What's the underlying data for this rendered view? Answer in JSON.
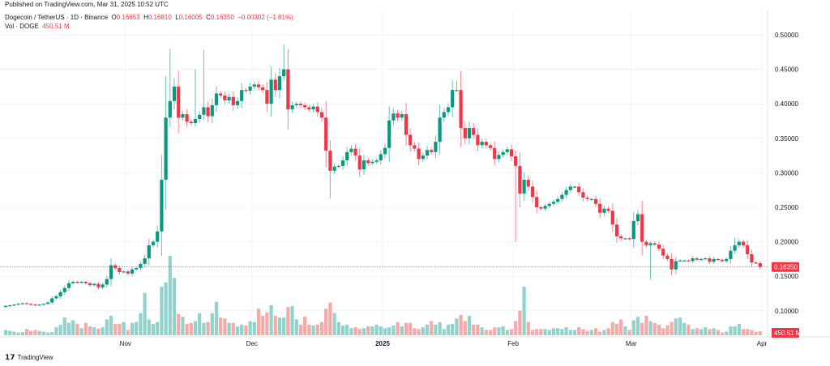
{
  "published": "Published on TradingView.com, Mar 31, 2025 10:52 UTC",
  "legend": {
    "symbol": "Dogecoin / TetherUS · 1D · Binance",
    "o_label": "O",
    "o": "0.16653",
    "h_label": "H",
    "h": "0.16810",
    "l_label": "L",
    "l": "0.16005",
    "c_label": "C",
    "c": "0.16350",
    "change": "−0.00302 (−1.81%)",
    "vol_label": "Vol · DOGE",
    "vol": "450.51 M"
  },
  "logo_text": "TradingView",
  "colors": {
    "up": "#089981",
    "down": "#f23645",
    "vol_up": "#92d2cc",
    "vol_down": "#f7a9a7",
    "grid": "#f0f3fa"
  },
  "chart_data": {
    "type": "candlestick",
    "title": "Dogecoin / TetherUS · 1D · Binance",
    "start_date": "2024-10-03",
    "end_date": "2025-03-31",
    "ylim": [
      0.07,
      0.52
    ],
    "y_ticks": [
      "0.50000",
      "0.45000",
      "0.40000",
      "0.35000",
      "0.30000",
      "0.25000",
      "0.20000",
      "0.15000",
      "0.10000"
    ],
    "y_tick_values": [
      0.5,
      0.45,
      0.4,
      0.35,
      0.3,
      0.25,
      0.2,
      0.15,
      0.1
    ],
    "x_ticks": [
      {
        "label": "Nov",
        "day": 29
      },
      {
        "label": "Dec",
        "day": 59
      },
      {
        "label": "2025",
        "day": 90,
        "bold": true
      },
      {
        "label": "Feb",
        "day": 121
      },
      {
        "label": "Mar",
        "day": 149
      },
      {
        "label": "Apr",
        "day": 180
      }
    ],
    "last_price": 0.1635,
    "last_price_label": "0.16350",
    "last_volume_label": "450.51 M",
    "first_open": 0.106,
    "close": [
      0.107,
      0.108,
      0.109,
      0.11,
      0.111,
      0.11,
      0.109,
      0.108,
      0.109,
      0.11,
      0.112,
      0.118,
      0.121,
      0.127,
      0.133,
      0.14,
      0.142,
      0.141,
      0.142,
      0.14,
      0.137,
      0.139,
      0.134,
      0.138,
      0.146,
      0.166,
      0.162,
      0.156,
      0.157,
      0.154,
      0.16,
      0.162,
      0.168,
      0.176,
      0.195,
      0.2,
      0.215,
      0.29,
      0.38,
      0.404,
      0.425,
      0.38,
      0.385,
      0.374,
      0.372,
      0.378,
      0.384,
      0.395,
      0.382,
      0.398,
      0.415,
      0.412,
      0.405,
      0.41,
      0.398,
      0.404,
      0.42,
      0.419,
      0.425,
      0.428,
      0.424,
      0.42,
      0.4,
      0.435,
      0.42,
      0.44,
      0.45,
      0.392,
      0.398,
      0.4,
      0.398,
      0.395,
      0.392,
      0.396,
      0.388,
      0.38,
      0.332,
      0.303,
      0.309,
      0.31,
      0.318,
      0.33,
      0.335,
      0.325,
      0.305,
      0.318,
      0.314,
      0.316,
      0.318,
      0.327,
      0.336,
      0.376,
      0.386,
      0.38,
      0.385,
      0.355,
      0.34,
      0.335,
      0.32,
      0.325,
      0.333,
      0.33,
      0.345,
      0.38,
      0.388,
      0.395,
      0.42,
      0.42,
      0.365,
      0.35,
      0.365,
      0.355,
      0.34,
      0.345,
      0.34,
      0.336,
      0.32,
      0.326,
      0.33,
      0.334,
      0.324,
      0.31,
      0.27,
      0.29,
      0.28,
      0.265,
      0.25,
      0.248,
      0.252,
      0.255,
      0.258,
      0.262,
      0.268,
      0.275,
      0.28,
      0.28,
      0.272,
      0.264,
      0.262,
      0.262,
      0.255,
      0.242,
      0.248,
      0.245,
      0.225,
      0.208,
      0.205,
      0.205,
      0.204,
      0.23,
      0.24,
      0.2,
      0.195,
      0.198,
      0.196,
      0.19,
      0.18,
      0.175,
      0.16,
      0.172,
      0.173,
      0.173,
      0.172,
      0.176,
      0.174,
      0.175,
      0.176,
      0.171,
      0.175,
      0.174,
      0.172,
      0.175,
      0.187,
      0.195,
      0.2,
      0.195,
      0.182,
      0.17,
      0.169,
      0.1635
    ],
    "wick_extremes": [
      {
        "day": 38,
        "high": 0.44
      },
      {
        "day": 39,
        "high": 0.48
      },
      {
        "day": 45,
        "high": 0.45
      },
      {
        "day": 47,
        "high": 0.478
      },
      {
        "day": 66,
        "high": 0.486
      },
      {
        "day": 77,
        "low": 0.263
      },
      {
        "day": 107,
        "high": 0.434
      },
      {
        "day": 121,
        "low": 0.2
      },
      {
        "day": 153,
        "low": 0.145
      },
      {
        "day": 173,
        "high": 0.206
      }
    ],
    "volume_millions": [
      600,
      500,
      400,
      300,
      350,
      700,
      500,
      600,
      500,
      400,
      300,
      350,
      900,
      1200,
      2000,
      1400,
      1700,
      1300,
      800,
      1400,
      1000,
      900,
      750,
      900,
      1800,
      2200,
      1300,
      1300,
      1500,
      600,
      1400,
      1500,
      2500,
      4800,
      1800,
      1300,
      1500,
      5500,
      6000,
      9000,
      6500,
      2400,
      2100,
      1300,
      1400,
      1600,
      2500,
      1400,
      1500,
      2500,
      3800,
      2000,
      1900,
      1400,
      1400,
      1000,
      1200,
      1100,
      1600,
      1500,
      3000,
      2200,
      2600,
      3400,
      2200,
      2000,
      2000,
      3200,
      3300,
      1800,
      1200,
      2100,
      1200,
      1100,
      1200,
      1500,
      3000,
      3700,
      2500,
      1500,
      1100,
      1200,
      800,
      900,
      700,
      800,
      1000,
      1000,
      1200,
      1000,
      800,
      900,
      1100,
      1500,
      1000,
      1400,
      1400,
      800,
      700,
      900,
      1200,
      1600,
      1200,
      1500,
      700,
      1200,
      1300,
      1900,
      2300,
      1600,
      2200,
      1200,
      1200,
      900,
      600,
      600,
      900,
      900,
      1000,
      600,
      700,
      1600,
      2800,
      5500,
      1500,
      600,
      700,
      700,
      700,
      600,
      800,
      800,
      700,
      900,
      600,
      600,
      900,
      700,
      500,
      600,
      800,
      400,
      600,
      800,
      1500,
      1300,
      1800,
      1000,
      600,
      1700,
      2100,
      1400,
      2200,
      1600,
      1400,
      1200,
      800,
      1100,
      1500,
      1900,
      2000,
      1400,
      1200,
      700,
      800,
      700,
      900,
      700,
      800,
      600,
      300,
      400,
      1000,
      1000,
      1300,
      700,
      700,
      600,
      400,
      450.51
    ]
  }
}
